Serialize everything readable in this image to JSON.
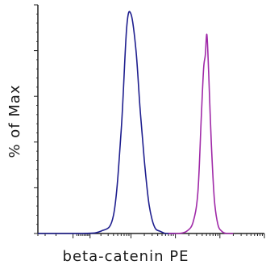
{
  "chart_data": {
    "type": "line",
    "title": "",
    "xlabel": "beta-catenin PE",
    "ylabel": "% of Max",
    "xscale": "log",
    "xlim": [
      -30,
      100000
    ],
    "ylim": [
      0,
      100
    ],
    "grid": false,
    "legend": "none",
    "series": [
      {
        "color": "#1f1f8f",
        "x": [
          -30,
          5,
          20,
          40,
          60,
          80,
          100,
          130,
          160,
          200,
          250,
          300,
          360,
          450,
          600,
          800,
          1000
        ],
        "values": [
          0,
          0,
          1,
          8,
          45,
          90,
          96,
          80,
          55,
          32,
          14,
          6,
          2,
          1,
          0,
          0,
          0
        ]
      },
      {
        "color": "#a02aa8",
        "x": [
          700,
          1200,
          1800,
          2500,
          3200,
          3800,
          4300,
          4700,
          5100,
          5600,
          6400,
          7500,
          9000,
          11000,
          14000,
          20000
        ],
        "values": [
          0,
          0,
          1,
          5,
          18,
          50,
          72,
          78,
          87,
          70,
          40,
          15,
          4,
          1,
          0,
          0
        ]
      }
    ],
    "yticks_count": 5
  }
}
